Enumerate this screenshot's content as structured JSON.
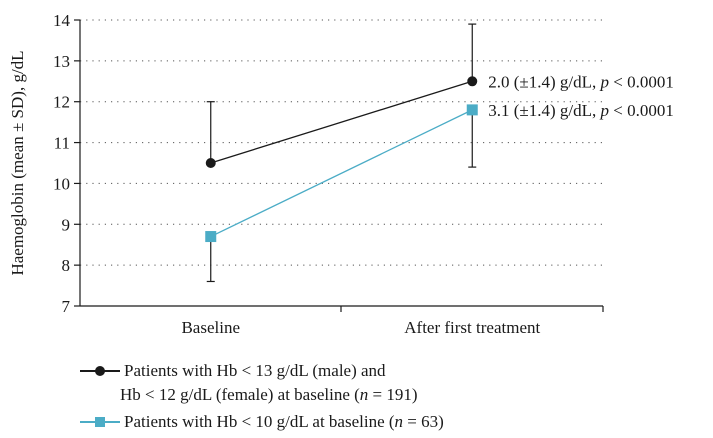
{
  "chart_data": {
    "type": "line",
    "ylabel": "Haemoglobin (mean ± SD), g/dL",
    "xlabel": "",
    "categories": [
      "Baseline",
      "After first treatment"
    ],
    "ylim": [
      7,
      14
    ],
    "yticks": [
      "7",
      "8",
      "9",
      "10",
      "11",
      "12",
      "13",
      "14"
    ],
    "grid": "horizontal dotted",
    "legend_position": "bottom-left",
    "series": [
      {
        "name": "Patients with Hb < 13 g/dL (male) and Hb < 12 g/dL (female) at baseline (n = 191)",
        "name_line1": "Patients with Hb < 13 g/dL (male) and",
        "name_line2_pre": "Hb < 12 g/dL (female) at baseline (",
        "name_line2_n": "n",
        "name_line2_post": " = 191)",
        "marker": "circle",
        "color": "#1a1a1a",
        "values": [
          10.5,
          12.5
        ],
        "sd": [
          1.5,
          1.4
        ],
        "errorbar_direction": "up",
        "annotation_pre": "2.0 (±1.4) g/dL, ",
        "annotation_p": "p",
        "annotation_post": " < 0.0001"
      },
      {
        "name": "Patients with Hb < 10 g/dL at baseline (n = 63)",
        "name_line1_pre": "Patients with Hb < 10 g/dL at baseline (",
        "name_line1_n": "n",
        "name_line1_post": " = 63)",
        "marker": "square",
        "color": "#4bacc6",
        "values": [
          8.7,
          11.8
        ],
        "sd": [
          1.1,
          1.4
        ],
        "errorbar_direction": "down",
        "annotation_pre": "3.1 (±1.4) g/dL, ",
        "annotation_p": "p",
        "annotation_post": " < 0.0001"
      }
    ]
  }
}
